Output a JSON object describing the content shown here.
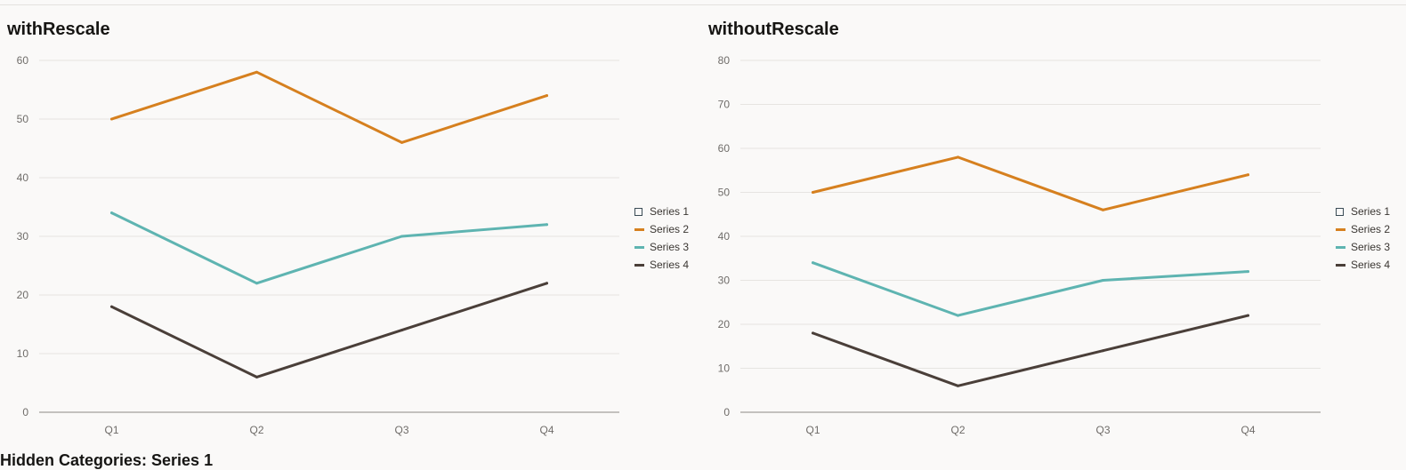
{
  "chart_data": [
    {
      "type": "line",
      "title": "withRescale",
      "categories": [
        "Q1",
        "Q2",
        "Q3",
        "Q4"
      ],
      "ylim": [
        0,
        60
      ],
      "yticks": [
        0,
        10,
        20,
        30,
        40,
        50,
        60
      ],
      "grid": true,
      "legend_position": "right",
      "series": [
        {
          "name": "Series 1",
          "values": [
            null,
            null,
            null,
            null
          ],
          "color": "#3a4b55",
          "hidden": true
        },
        {
          "name": "Series 2",
          "values": [
            50,
            58,
            46,
            54
          ],
          "color": "#d6801f"
        },
        {
          "name": "Series 3",
          "values": [
            34,
            22,
            30,
            32
          ],
          "color": "#5eb4b1"
        },
        {
          "name": "Series 4",
          "values": [
            18,
            6,
            14,
            22
          ],
          "color": "#4a3f39"
        }
      ]
    },
    {
      "type": "line",
      "title": "withoutRescale",
      "categories": [
        "Q1",
        "Q2",
        "Q3",
        "Q4"
      ],
      "ylim": [
        0,
        80
      ],
      "yticks": [
        0,
        10,
        20,
        30,
        40,
        50,
        60,
        70,
        80
      ],
      "grid": true,
      "legend_position": "right",
      "series": [
        {
          "name": "Series 1",
          "values": [
            null,
            null,
            null,
            null
          ],
          "color": "#3a4b55",
          "hidden": true
        },
        {
          "name": "Series 2",
          "values": [
            50,
            58,
            46,
            54
          ],
          "color": "#d6801f"
        },
        {
          "name": "Series 3",
          "values": [
            34,
            22,
            30,
            32
          ],
          "color": "#5eb4b1"
        },
        {
          "name": "Series 4",
          "values": [
            18,
            6,
            14,
            22
          ],
          "color": "#4a3f39"
        }
      ]
    }
  ],
  "footer": {
    "heading": "Hidden Categories: Series 1"
  }
}
